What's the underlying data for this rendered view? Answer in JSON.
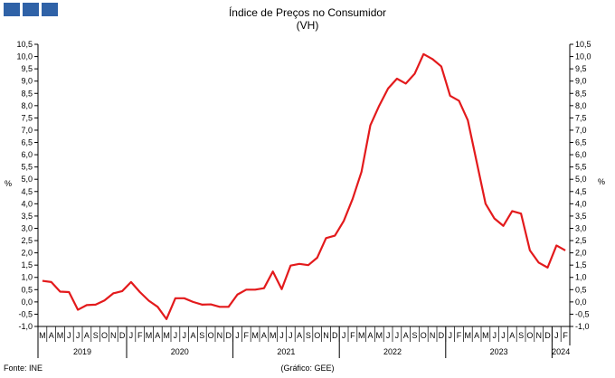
{
  "header": {
    "logo_icon": "ine-logo-icon",
    "title": "Índice de Preços no Consumidor",
    "subtitle": "(VH)"
  },
  "footer": {
    "source": "Fonte: INE",
    "credit": "(Gráfico: GEE)"
  },
  "chart_data": {
    "type": "line",
    "ylabel_left": "%",
    "ylabel_right": "%",
    "ylim": [
      -1.0,
      10.5
    ],
    "ytick_step": 0.5,
    "ytick_labels": [
      "-1,0",
      "-0,5",
      "0,0",
      "0,5",
      "1,0",
      "1,5",
      "2,0",
      "2,5",
      "3,0",
      "3,5",
      "4,0",
      "4,5",
      "5,0",
      "5,5",
      "6,0",
      "6,5",
      "7,0",
      "7,5",
      "8,0",
      "8,5",
      "9,0",
      "9,5",
      "10,0",
      "10,5"
    ],
    "month_labels": [
      "M",
      "A",
      "M",
      "J",
      "J",
      "A",
      "S",
      "O",
      "N",
      "D",
      "J",
      "F",
      "M",
      "A",
      "M",
      "J",
      "J",
      "A",
      "S",
      "O",
      "N",
      "D",
      "J",
      "F",
      "M",
      "A",
      "M",
      "J",
      "J",
      "A",
      "S",
      "O",
      "N",
      "D",
      "J",
      "F",
      "M",
      "A",
      "M",
      "J",
      "J",
      "A",
      "S",
      "O",
      "N",
      "D",
      "J",
      "F",
      "M",
      "A",
      "M",
      "J",
      "J",
      "A",
      "S",
      "O",
      "N",
      "D",
      "J",
      "F"
    ],
    "year_labels": [
      {
        "year": "2019",
        "start": 0,
        "count": 10
      },
      {
        "year": "2020",
        "start": 10,
        "count": 12
      },
      {
        "year": "2021",
        "start": 22,
        "count": 12
      },
      {
        "year": "2022",
        "start": 34,
        "count": 12
      },
      {
        "year": "2023",
        "start": 46,
        "count": 12
      },
      {
        "year": "2024",
        "start": 58,
        "count": 2
      }
    ],
    "series": [
      {
        "color": "#e31a1c",
        "values": [
          0.86,
          0.81,
          0.42,
          0.4,
          -0.32,
          -0.13,
          -0.11,
          0.06,
          0.35,
          0.44,
          0.81,
          0.4,
          0.05,
          -0.2,
          -0.7,
          0.15,
          0.15,
          0.0,
          -0.11,
          -0.1,
          -0.2,
          -0.2,
          0.3,
          0.5,
          0.5,
          0.56,
          1.24,
          0.52,
          1.48,
          1.55,
          1.5,
          1.8,
          2.6,
          2.7,
          3.3,
          4.2,
          5.3,
          7.2,
          8.0,
          8.7,
          9.1,
          8.9,
          9.3,
          10.1,
          9.9,
          9.6,
          8.4,
          8.2,
          7.4,
          5.7,
          4.0,
          3.4,
          3.1,
          3.7,
          3.6,
          2.1,
          1.6,
          1.4,
          2.3,
          2.1
        ]
      }
    ]
  }
}
